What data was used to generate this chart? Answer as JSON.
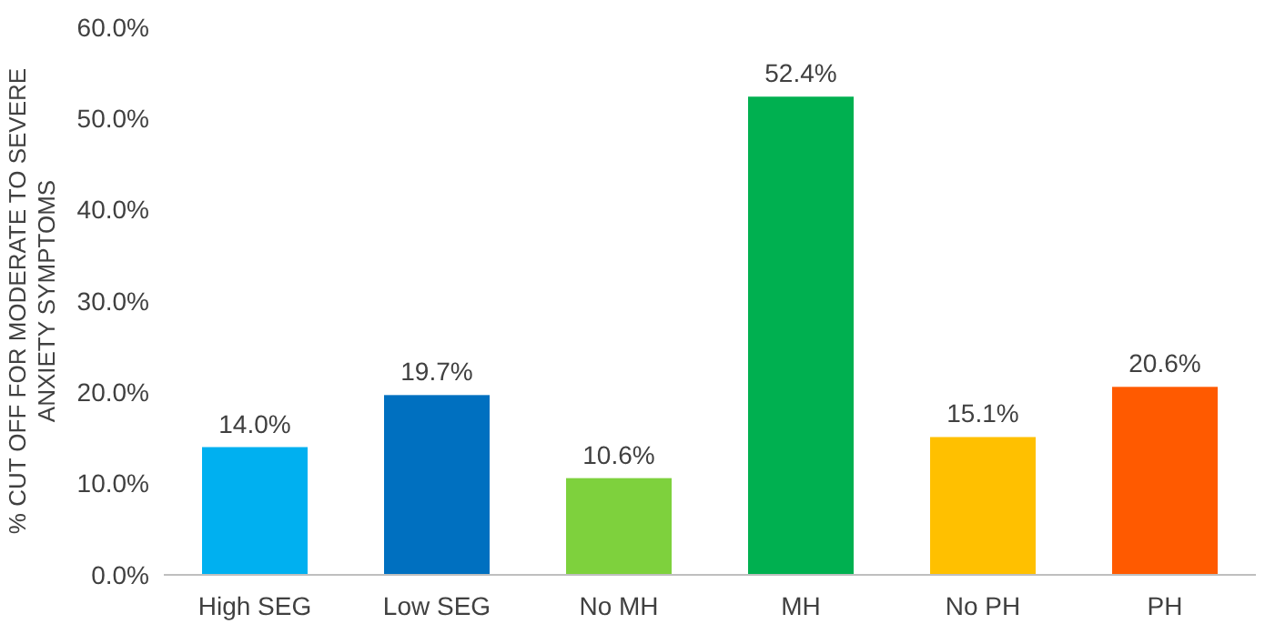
{
  "chart_data": {
    "type": "bar",
    "ylabel": "% CUT OFF FOR MODERATE TO SEVERE\nANXIETY  SYMPTOMS",
    "categories": [
      "High SEG",
      "Low SEG",
      "No MH",
      "MH",
      "No PH",
      "PH"
    ],
    "values": [
      14.0,
      19.7,
      10.6,
      52.4,
      15.1,
      20.6
    ],
    "colors": [
      "#00b0f0",
      "#0070c0",
      "#7ed13d",
      "#00b050",
      "#ffc000",
      "#ff5a00"
    ],
    "value_labels": [
      "14.0%",
      "19.7%",
      "10.6%",
      "52.4%",
      "15.1%",
      "20.6%"
    ],
    "ylim": [
      0,
      60
    ],
    "yticks": [
      {
        "value": 0,
        "label": "0.0%"
      },
      {
        "value": 10,
        "label": "10.0%"
      },
      {
        "value": 20,
        "label": "20.0%"
      },
      {
        "value": 30,
        "label": "30.0%"
      },
      {
        "value": 40,
        "label": "40.0%"
      },
      {
        "value": 50,
        "label": "50.0%"
      },
      {
        "value": 60,
        "label": "60.0%"
      }
    ],
    "grid": false
  }
}
